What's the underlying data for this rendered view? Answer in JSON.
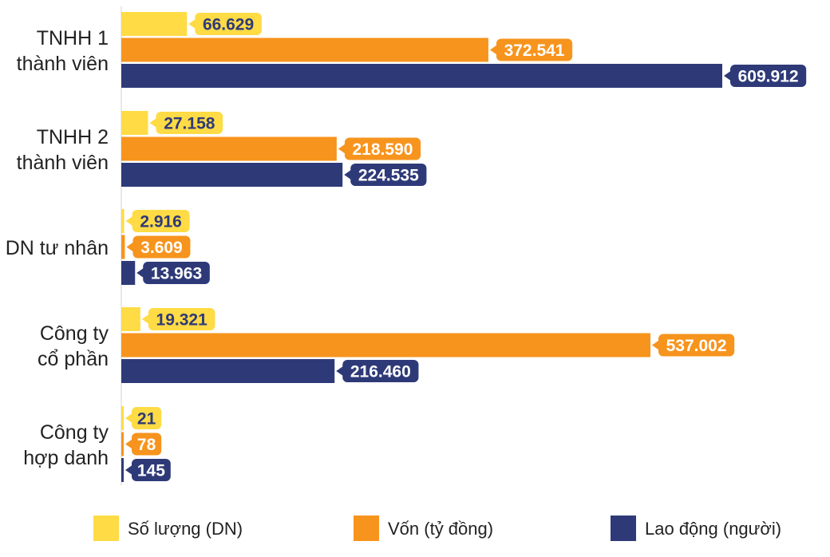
{
  "chart_data": {
    "type": "bar",
    "orientation": "horizontal",
    "categories": [
      [
        "TNHH 1",
        "thành viên"
      ],
      [
        "TNHH 2",
        "thành viên"
      ],
      [
        "DN tư nhân"
      ],
      [
        "Công ty",
        "cổ phần"
      ],
      [
        "Công ty",
        "hợp danh"
      ]
    ],
    "series": [
      {
        "name": "Số lượng (DN)",
        "color": "#FFDB45",
        "label_text_color": "#2E3A78",
        "values": [
          66629,
          27158,
          2916,
          19321,
          21
        ],
        "labels": [
          "66.629",
          "27.158",
          "2.916",
          "19.321",
          "21"
        ]
      },
      {
        "name": "Vốn (tỷ đồng)",
        "color": "#F7941D",
        "label_text_color": "#FFFFFF",
        "values": [
          372541,
          218590,
          3609,
          537002,
          78
        ],
        "labels": [
          "372.541",
          "218.590",
          "3.609",
          "537.002",
          "78"
        ]
      },
      {
        "name": "Lao động (người)",
        "color": "#2E3A78",
        "label_text_color": "#FFFFFF",
        "values": [
          609912,
          224535,
          13963,
          216460,
          145
        ],
        "labels": [
          "609.912",
          "224.535",
          "13.963",
          "216.460",
          "145"
        ]
      }
    ],
    "title": "",
    "xlabel": "",
    "ylabel": "",
    "xlim": [
      0,
      609912
    ],
    "grid": false,
    "legend": "bottom"
  }
}
